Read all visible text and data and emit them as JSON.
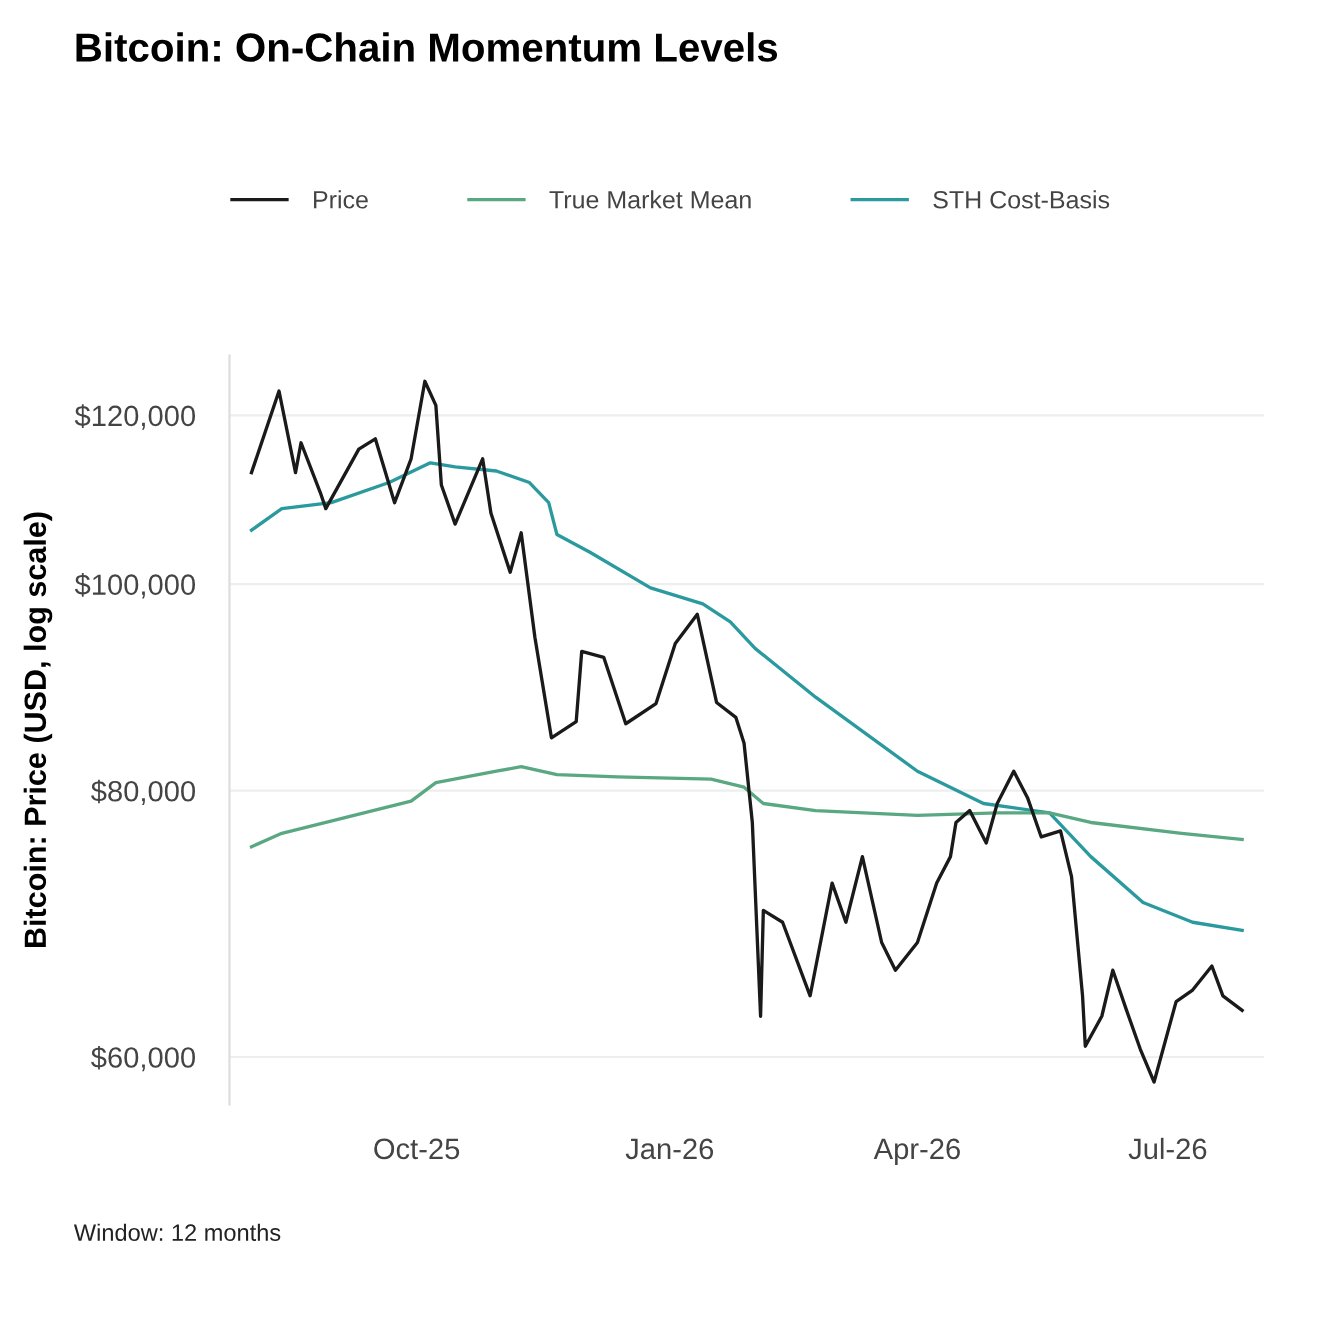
{
  "chart_data": {
    "type": "line",
    "title": "Bitcoin: On-Chain Momentum Levels",
    "ylabel": "Bitcoin: Price (USD, log scale)",
    "annotations": [
      "Window: 12 months"
    ],
    "series": [
      {
        "name": "Price",
        "color": "#1a1a1a",
        "x": [
          "2025-08-02",
          "2025-08-12",
          "2025-08-18",
          "2025-08-20",
          "2025-08-27",
          "2025-08-29",
          "2025-09-10",
          "2025-09-16",
          "2025-09-23",
          "2025-09-29",
          "2025-10-04",
          "2025-10-08",
          "2025-10-10",
          "2025-10-15",
          "2025-10-25",
          "2025-10-28",
          "2025-11-04",
          "2025-11-08",
          "2025-11-13",
          "2025-11-19",
          "2025-11-28",
          "2025-11-30",
          "2025-12-08",
          "2025-12-16",
          "2025-12-27",
          "2026-01-03",
          "2026-01-11",
          "2026-01-18",
          "2026-01-25",
          "2026-01-28",
          "2026-01-31",
          "2026-02-03",
          "2026-02-04",
          "2026-02-11",
          "2026-02-21",
          "2026-03-01",
          "2026-03-06",
          "2026-03-12",
          "2026-03-19",
          "2026-03-24",
          "2026-04-01",
          "2026-04-08",
          "2026-04-13",
          "2026-04-15",
          "2026-04-20",
          "2026-04-26",
          "2026-04-30",
          "2026-05-06",
          "2026-05-11",
          "2026-05-16",
          "2026-05-23",
          "2026-05-27",
          "2026-05-31",
          "2026-06-01",
          "2026-06-07",
          "2026-06-11",
          "2026-06-16",
          "2026-06-21",
          "2026-06-26",
          "2026-07-04",
          "2026-07-10",
          "2026-07-17",
          "2026-07-21",
          "2026-07-28"
        ],
        "values": [
          112800,
          123200,
          112800,
          116500,
          110400,
          108500,
          115700,
          117000,
          109200,
          114500,
          124500,
          121300,
          111300,
          106700,
          114500,
          108000,
          101300,
          105700,
          94400,
          84700,
          86200,
          93000,
          92400,
          86000,
          87900,
          93800,
          96800,
          88000,
          86600,
          84200,
          77300,
          62700,
          70300,
          69400,
          64100,
          72400,
          69400,
          74500,
          67900,
          65900,
          67900,
          72400,
          74500,
          77300,
          78300,
          75600,
          78900,
          81700,
          79400,
          76100,
          76600,
          72900,
          64100,
          60700,
          62700,
          65900,
          63100,
          60500,
          58400,
          63700,
          64500,
          66200,
          64100,
          63100
        ]
      },
      {
        "name": "True Market Mean",
        "color": "#5aa882",
        "x": [
          "2025-08-02",
          "2025-08-13",
          "2025-09-29",
          "2025-10-08",
          "2025-10-30",
          "2025-11-08",
          "2025-11-21",
          "2025-12-13",
          "2026-01-16",
          "2026-01-28",
          "2026-02-04",
          "2026-02-23",
          "2026-04-01",
          "2026-04-30",
          "2026-05-19",
          "2026-06-03",
          "2026-07-06",
          "2026-07-28"
        ],
        "values": [
          75300,
          76400,
          79100,
          80700,
          81700,
          82100,
          81400,
          81200,
          81000,
          80300,
          78900,
          78300,
          77900,
          78100,
          78100,
          77300,
          76400,
          75900
        ]
      },
      {
        "name": "STH Cost-Basis",
        "color": "#2a9a9f",
        "x": [
          "2025-08-02",
          "2025-08-13",
          "2025-08-31",
          "2025-09-21",
          "2025-10-06",
          "2025-10-15",
          "2025-10-30",
          "2025-11-11",
          "2025-11-18",
          "2025-11-21",
          "2025-12-03",
          "2025-12-25",
          "2026-01-13",
          "2026-01-23",
          "2026-02-01",
          "2026-02-23",
          "2026-04-01",
          "2026-04-25",
          "2026-05-19",
          "2026-06-03",
          "2026-06-22",
          "2026-07-10",
          "2026-07-28"
        ],
        "values": [
          106000,
          108500,
          109200,
          111600,
          114000,
          113500,
          113000,
          111600,
          109200,
          105500,
          103500,
          99600,
          97900,
          96000,
          93300,
          88500,
          81700,
          78900,
          78100,
          74500,
          70900,
          69400,
          68800
        ]
      }
    ],
    "log": true,
    "ylim": [
      57000,
      128000
    ],
    "yticks": [
      {
        "value": 60000,
        "label": "$60,000"
      },
      {
        "value": 80000,
        "label": "$80,000"
      },
      {
        "value": 100000,
        "label": "$100,000"
      },
      {
        "value": 120000,
        "label": "$120,000"
      }
    ],
    "xlim": [
      "2025-07-25",
      "2026-08-05"
    ],
    "xticks": [
      {
        "value": "2025-10-01",
        "label": "Oct-25"
      },
      {
        "value": "2026-01-01",
        "label": "Jan-26"
      },
      {
        "value": "2026-04-01",
        "label": "Apr-26"
      },
      {
        "value": "2026-07-01",
        "label": "Jul-26"
      }
    ],
    "grid": "y",
    "legend": "top",
    "marker": "none",
    "line_style": "solid"
  }
}
